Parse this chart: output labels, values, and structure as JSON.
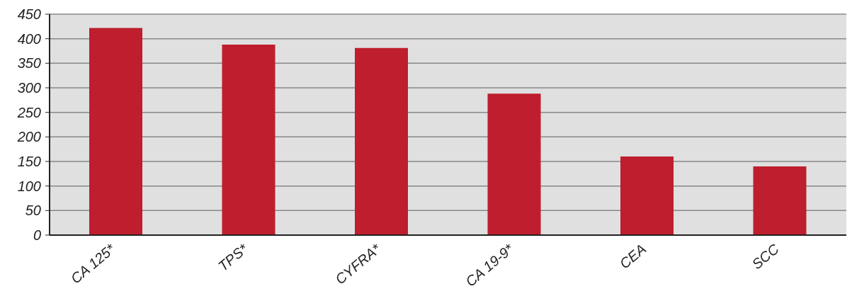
{
  "chart_data": {
    "type": "bar",
    "categories": [
      "CA 125*",
      "TPS*",
      "CYFRA*",
      "CA 19-9*",
      "CEA",
      "SCC"
    ],
    "values": [
      422,
      388,
      381,
      288,
      160,
      140
    ],
    "color": "#be1e2d",
    "ylim": [
      0,
      450
    ],
    "yticks": [
      0,
      50,
      100,
      150,
      200,
      250,
      300,
      350,
      400,
      450
    ],
    "grid": "y"
  }
}
